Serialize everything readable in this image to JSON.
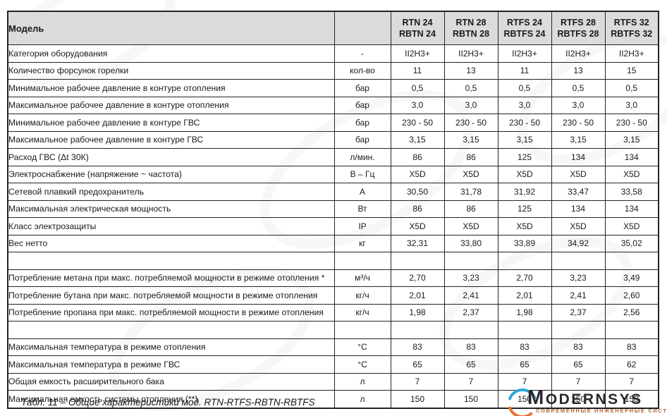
{
  "colors": {
    "header_bg": "#dbdbdb",
    "border": "#242424",
    "text": "#1a1a1a"
  },
  "table": {
    "header": {
      "model_label": "Модель",
      "unit_header": "",
      "columns": [
        {
          "line1": "RTN 24",
          "line2": "RBTN 24"
        },
        {
          "line1": "RTN 28",
          "line2": "RBTN 28"
        },
        {
          "line1": "RTFS 24",
          "line2": "RBTFS 24"
        },
        {
          "line1": "RTFS 28",
          "line2": "RBTFS 28"
        },
        {
          "line1": "RTFS 32",
          "line2": "RBTFS 32"
        }
      ]
    },
    "rows": [
      {
        "label": "Категория оборудования",
        "unit": "-",
        "values": [
          "II2H3+",
          "II2H3+",
          "II2H3+",
          "II2H3+",
          "II2H3+"
        ]
      },
      {
        "label": "Количество форсунок горелки",
        "unit": "кол-во",
        "values": [
          "11",
          "13",
          "11",
          "13",
          "15"
        ]
      },
      {
        "label": "Минимальное рабочее давление в контуре отопления",
        "unit": "бар",
        "values": [
          "0,5",
          "0,5",
          "0,5",
          "0,5",
          "0,5"
        ]
      },
      {
        "label": "Максимальное рабочее давление в контуре отопления",
        "unit": "бар",
        "values": [
          "3,0",
          "3,0",
          "3,0",
          "3,0",
          "3,0"
        ]
      },
      {
        "label": "Минимальное рабочее давление в контуре ГВС",
        "unit": "бар",
        "values": [
          "230 - 50",
          "230 - 50",
          "230 - 50",
          "230 - 50",
          "230 - 50"
        ]
      },
      {
        "label": "Максимальное рабочее давление в контуре ГВС",
        "unit": "бар",
        "values": [
          "3,15",
          "3,15",
          "3,15",
          "3,15",
          "3,15"
        ]
      },
      {
        "label": "Расход ГВС (Δt 30К)",
        "unit": "л/мин.",
        "values": [
          "86",
          "86",
          "125",
          "134",
          "134"
        ]
      },
      {
        "label": "Электроснабжение (напряжение ~ частота)",
        "unit": "В – Гц",
        "values": [
          "X5D",
          "X5D",
          "X5D",
          "X5D",
          "X5D"
        ]
      },
      {
        "label": "Сетевой плавкий предохранитель",
        "unit": "А",
        "values": [
          "30,50",
          "31,78",
          "31,92",
          "33,47",
          "33,58"
        ]
      },
      {
        "label": "Максимальная электрическая мощность",
        "unit": "Вт",
        "values": [
          "86",
          "86",
          "125",
          "134",
          "134"
        ]
      },
      {
        "label": "Класс электрозащиты",
        "unit": "IP",
        "values": [
          "X5D",
          "X5D",
          "X5D",
          "X5D",
          "X5D"
        ]
      },
      {
        "label": "Вес нетто",
        "unit": "кг",
        "values": [
          "32,31",
          "33,80",
          "33,89",
          "34,92",
          "35,02"
        ]
      },
      {
        "label": "",
        "unit": "",
        "values": [
          "",
          "",
          "",
          "",
          ""
        ]
      },
      {
        "label": "Потребление метана при макс. потребляемой мощности в режиме отопления *",
        "unit": "м³/ч",
        "values": [
          "2,70",
          "3,23",
          "2,70",
          "3,23",
          "3,49"
        ]
      },
      {
        "label": "Потребление бутана при макс. потребляемой мощности в режиме отопления",
        "unit": "кг/ч",
        "values": [
          "2,01",
          "2,41",
          "2,01",
          "2,41",
          "2,60"
        ]
      },
      {
        "label": "Потребление пропана при макс. потребляемой мощности в режиме отопления",
        "unit": "кг/ч",
        "values": [
          "1,98",
          "2,37",
          "1,98",
          "2,37",
          "2,56"
        ]
      },
      {
        "label": "",
        "unit": "",
        "values": [
          "",
          "",
          "",
          "",
          ""
        ]
      },
      {
        "label": "Максимальная температура в режиме отопления",
        "unit": "°С",
        "values": [
          "83",
          "83",
          "83",
          "83",
          "83"
        ]
      },
      {
        "label": "Максимальная температура в режиме ГВС",
        "unit": "°С",
        "values": [
          "65",
          "65",
          "65",
          "65",
          "62"
        ]
      },
      {
        "label": "Общая емкость расширительного бака",
        "unit": "л",
        "values": [
          "7",
          "7",
          "7",
          "7",
          "7"
        ]
      },
      {
        "label": "Максимальная емкость системы отопления (**)",
        "unit": "л",
        "values": [
          "150",
          "150",
          "150",
          "150",
          "150"
        ]
      }
    ],
    "caption": "Табл. 11 – Общие характеристики мод. RTN-RTFS-RBTN-RBTFS"
  },
  "logo": {
    "name": "MODERNSYS",
    "tagline": "СОВРЕМЕННЫЕ ИНЖЕНЕРНЫЕ СИСТЕМЫ",
    "colors": {
      "arc_top": "#2da7db",
      "arc_bottom": "#e77434",
      "text": "#28282e",
      "tagline": "#b06a3a"
    }
  }
}
